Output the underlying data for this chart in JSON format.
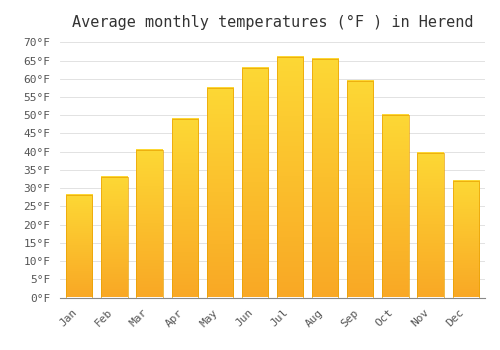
{
  "title": "Average monthly temperatures (°F ) in Herend",
  "months": [
    "Jan",
    "Feb",
    "Mar",
    "Apr",
    "May",
    "Jun",
    "Jul",
    "Aug",
    "Sep",
    "Oct",
    "Nov",
    "Dec"
  ],
  "values": [
    28,
    33,
    40.5,
    49,
    57.5,
    63,
    66,
    65.5,
    59.5,
    50,
    39.5,
    32
  ],
  "bar_color_top": "#FDD835",
  "bar_color_bottom": "#F9A825",
  "bar_edge_color": "#E65100",
  "background_color": "#FFFFFF",
  "grid_color": "#DDDDDD",
  "title_fontsize": 11,
  "tick_fontsize": 8,
  "ylim": [
    0,
    72
  ],
  "yticks": [
    0,
    5,
    10,
    15,
    20,
    25,
    30,
    35,
    40,
    45,
    50,
    55,
    60,
    65,
    70
  ]
}
